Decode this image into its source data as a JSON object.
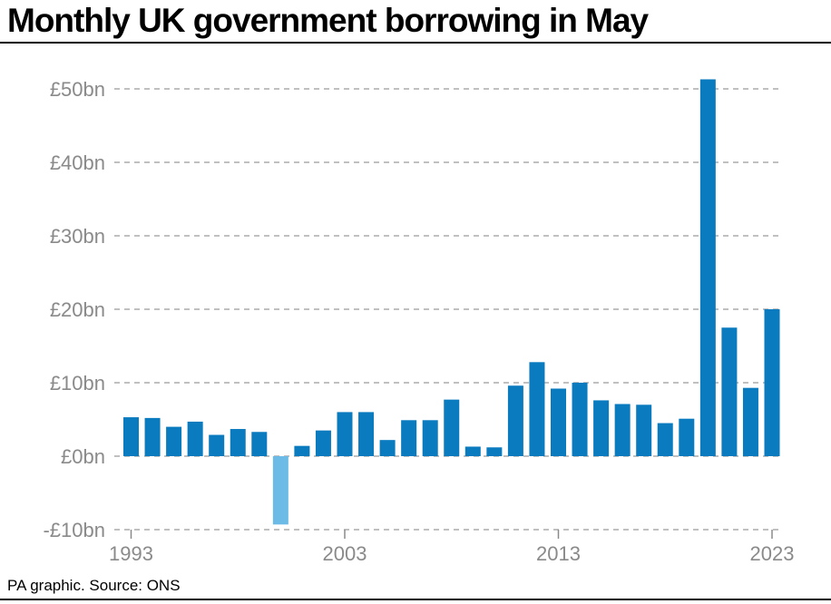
{
  "header": {
    "title": "Monthly UK government borrowing in May"
  },
  "footer": {
    "source": "PA graphic. Source: ONS"
  },
  "chart_data": {
    "type": "bar",
    "title": "Monthly UK government borrowing in May",
    "xlabel": "",
    "ylabel": "",
    "categories": [
      1993,
      1994,
      1995,
      1996,
      1997,
      1998,
      1999,
      2000,
      2001,
      2002,
      2003,
      2004,
      2005,
      2006,
      2007,
      2008,
      2009,
      2010,
      2011,
      2012,
      2013,
      2014,
      2015,
      2016,
      2017,
      2018,
      2019,
      2020,
      2021,
      2022,
      2023
    ],
    "values": [
      5.3,
      5.2,
      4.0,
      4.7,
      2.9,
      3.7,
      3.3,
      -9.3,
      1.4,
      3.5,
      6.0,
      6.0,
      2.2,
      4.9,
      4.9,
      7.7,
      1.3,
      1.2,
      9.6,
      12.8,
      9.2,
      10.0,
      7.6,
      7.1,
      7.0,
      4.5,
      5.1,
      51.3,
      17.5,
      9.3,
      20.0
    ],
    "bar_colors": {
      "positive": "#0b7bbf",
      "negative": "#6bbbe6"
    },
    "ylim": [
      -10,
      50
    ],
    "yticks": [
      {
        "value": 50,
        "label": "£50bn"
      },
      {
        "value": 40,
        "label": "£40bn"
      },
      {
        "value": 30,
        "label": "£30bn"
      },
      {
        "value": 20,
        "label": "£20bn"
      },
      {
        "value": 10,
        "label": "£10bn"
      },
      {
        "value": 0,
        "label": "£0bn"
      },
      {
        "value": -10,
        "label": "-£10bn"
      }
    ],
    "xticks": [
      {
        "value": 1993,
        "label": "1993"
      },
      {
        "value": 2003,
        "label": "2003"
      },
      {
        "value": 2013,
        "label": "2013"
      },
      {
        "value": 2023,
        "label": "2023"
      }
    ],
    "grid": "dashed horizontal",
    "colors": {
      "tick_text": "#8a8a8a",
      "grid": "#9a9a9a",
      "axis_line": "#8a8a8a"
    }
  }
}
